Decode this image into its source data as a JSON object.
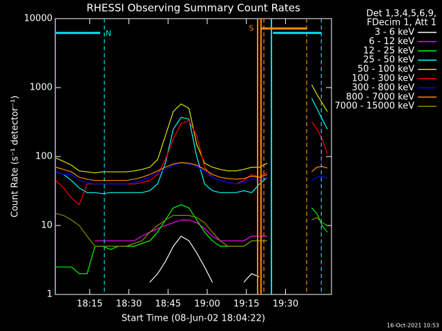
{
  "chart_data": {
    "type": "line",
    "title": "RHESSI Observing Summary Count Rates",
    "x_label": "Start Time (08-Jun-02 18:04:22)",
    "y_label": "Count Rate (s⁻¹ detector⁻¹)",
    "footer": "16-Oct-2021 10:53",
    "legend_title": [
      "Det 1,3,4,5,6,9,",
      "FDecim 1, Att 1"
    ],
    "log_y": true,
    "xlim": [
      1.8,
      107.6
    ],
    "ylim": [
      1,
      10000
    ],
    "xticks": [
      {
        "value": 15,
        "label": "18:15"
      },
      {
        "value": 30,
        "label": "18:30"
      },
      {
        "value": 45,
        "label": "18:45"
      },
      {
        "value": 60,
        "label": "19:00"
      },
      {
        "value": 75,
        "label": "19:15"
      },
      {
        "value": 90,
        "label": "19:30"
      }
    ],
    "yticks": [
      1,
      10,
      100,
      1000,
      10000
    ],
    "x": [
      2,
      5,
      8,
      11,
      14,
      17,
      20,
      23,
      26,
      29,
      32,
      35,
      38,
      41,
      44,
      47,
      50,
      53,
      56,
      59,
      62,
      65,
      68,
      71,
      74,
      77,
      80,
      83,
      92,
      100,
      102,
      104,
      106
    ],
    "series": [
      {
        "name": "3 - 6 keV",
        "color": "#ffffff",
        "values": [
          null,
          null,
          null,
          null,
          null,
          null,
          null,
          null,
          null,
          null,
          null,
          null,
          1.5,
          2,
          3,
          5,
          7,
          6,
          4,
          2.5,
          1.5,
          null,
          null,
          null,
          1.5,
          2,
          1.8,
          null,
          null,
          null,
          null,
          null,
          null
        ]
      },
      {
        "name": "6 - 12 keV",
        "color": "#ff00ff",
        "values": [
          null,
          null,
          null,
          null,
          null,
          6,
          6,
          6,
          6,
          6,
          6,
          7,
          8,
          9,
          10,
          11,
          12,
          12,
          11,
          9,
          7,
          6,
          6,
          6,
          6,
          7,
          7,
          7,
          null,
          null,
          null,
          null,
          null
        ]
      },
      {
        "name": "12 - 25 keV",
        "color": "#00ff00",
        "values": [
          2.5,
          2.5,
          2.5,
          2,
          2,
          5,
          5,
          4.5,
          5,
          5,
          5,
          5.5,
          6,
          8,
          12,
          18,
          20,
          18,
          12,
          8,
          6,
          5,
          5,
          5,
          5,
          6,
          6,
          6,
          null,
          18,
          15,
          10,
          8
        ]
      },
      {
        "name": "25 - 50 keV",
        "color": "#00ffff",
        "values": [
          60,
          55,
          45,
          35,
          30,
          30,
          29,
          30,
          30,
          30,
          30,
          30,
          32,
          40,
          80,
          250,
          370,
          350,
          100,
          40,
          32,
          30,
          30,
          30,
          32,
          30,
          40,
          50,
          null,
          700,
          500,
          350,
          250
        ]
      },
      {
        "name": "50 - 100 keV",
        "color": "#e6e600",
        "values": [
          95,
          85,
          75,
          62,
          60,
          58,
          60,
          60,
          60,
          60,
          62,
          65,
          70,
          90,
          200,
          450,
          580,
          500,
          150,
          80,
          70,
          65,
          62,
          62,
          65,
          70,
          70,
          80,
          null,
          1100,
          800,
          600,
          450
        ]
      },
      {
        "name": "100 - 300 keV",
        "color": "#ff0000",
        "values": [
          45,
          35,
          25,
          20,
          40,
          40,
          40,
          40,
          40,
          40,
          40,
          42,
          45,
          55,
          90,
          180,
          300,
          330,
          200,
          70,
          50,
          45,
          42,
          40,
          45,
          55,
          50,
          60,
          null,
          320,
          250,
          180,
          110
        ]
      },
      {
        "name": "300 - 800 keV",
        "color": "#0000ff",
        "values": [
          60,
          55,
          55,
          45,
          42,
          40,
          40,
          40,
          40,
          40,
          42,
          45,
          50,
          58,
          65,
          75,
          80,
          78,
          72,
          60,
          50,
          45,
          42,
          40,
          42,
          48,
          45,
          50,
          null,
          45,
          50,
          52,
          48
        ]
      },
      {
        "name": "800 - 7000 keV",
        "color": "#ff8c00",
        "values": [
          70,
          65,
          60,
          50,
          47,
          45,
          45,
          45,
          45,
          45,
          47,
          50,
          55,
          62,
          70,
          78,
          82,
          80,
          75,
          65,
          55,
          50,
          48,
          47,
          48,
          52,
          50,
          55,
          null,
          60,
          70,
          72,
          68
        ]
      },
      {
        "name": "7000 - 15000 keV",
        "color": "#8b8b00",
        "values": [
          15,
          14,
          12,
          10,
          7,
          5,
          5,
          5,
          5,
          5,
          5.5,
          6,
          8,
          10,
          12,
          14,
          14,
          14,
          13,
          11,
          8,
          6,
          5,
          5,
          5,
          6,
          6,
          6,
          null,
          12,
          13,
          11,
          10
        ]
      }
    ],
    "hbars": [
      {
        "start": 1.8,
        "end": 19.0,
        "level": 6200,
        "color": "#00e5ee"
      },
      {
        "start": 85.2,
        "end": 103.7,
        "level": 6200,
        "color": "#00e5ee"
      },
      {
        "start": 80.6,
        "end": 98.1,
        "level": 7200,
        "color": "#ff8c00"
      }
    ],
    "vlines": [
      {
        "x": 1.8,
        "color": "#00e5ee",
        "style": "solid"
      },
      {
        "x": 20.6,
        "color": "#00e5ee",
        "style": "dashed"
      },
      {
        "x": 84.6,
        "color": "#00e5ee",
        "style": "solid"
      },
      {
        "x": 103.7,
        "color": "#00e5ee",
        "style": "dashed"
      },
      {
        "x": 79.3,
        "color": "#ff8c00",
        "style": "solid"
      },
      {
        "x": 80.6,
        "color": "#ff8c00",
        "style": "solid"
      },
      {
        "x": 81.7,
        "color": "#ff8c00",
        "style": "dashed"
      },
      {
        "x": 98.1,
        "color": "#ff8c00",
        "style": "dashed"
      }
    ],
    "annotations": [
      {
        "text": "N",
        "x": 22.2,
        "y": 6000,
        "color": "#00e5ee"
      },
      {
        "text": "S",
        "x": 76.9,
        "y": 7200,
        "color": "#ff8c00"
      }
    ]
  }
}
